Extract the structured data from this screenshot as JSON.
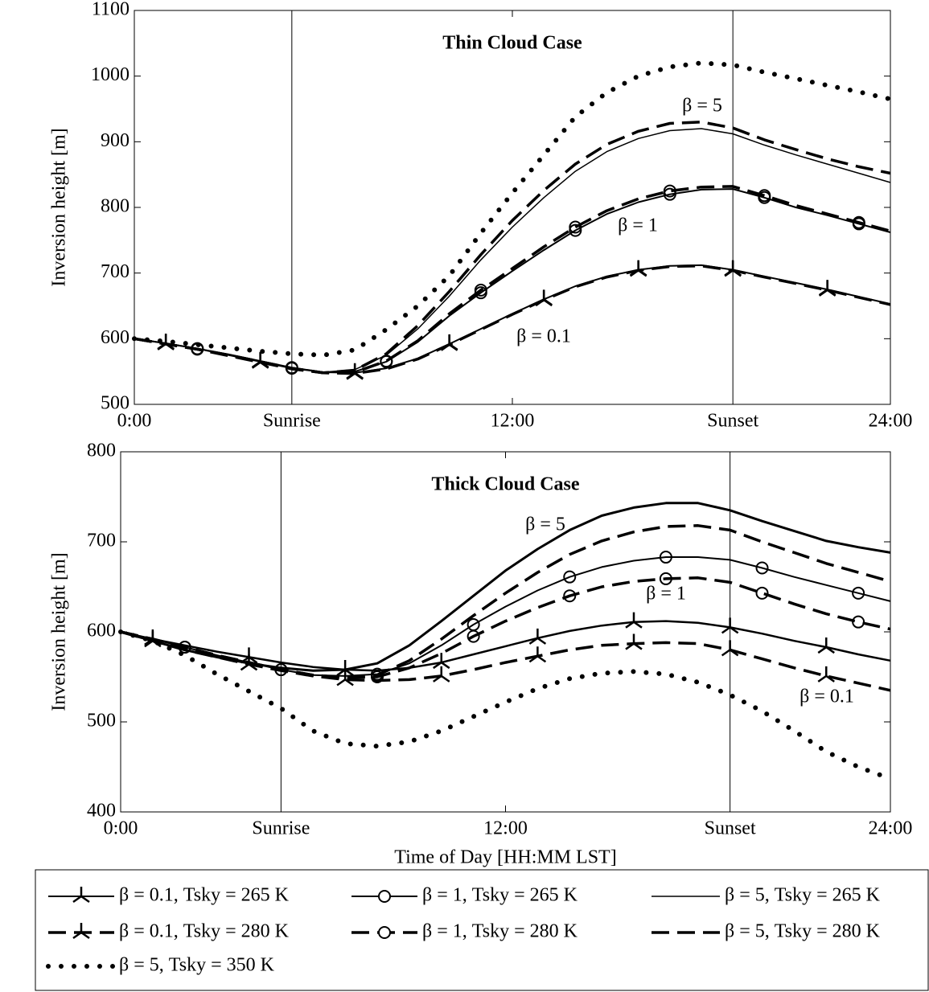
{
  "chart_data": [
    {
      "type": "line",
      "title": "Thin Cloud Case",
      "ylabel": "Inversion height [m]",
      "x": [
        0,
        1,
        2,
        3,
        4,
        5,
        6,
        7,
        8,
        9,
        10,
        11,
        12,
        13,
        14,
        15,
        16,
        17,
        18,
        19,
        20,
        21,
        22,
        23,
        24
      ],
      "xlim": [
        0,
        24
      ],
      "xticks": [
        {
          "value": 0,
          "label": "0:00"
        },
        {
          "value": 12,
          "label": "12:00"
        },
        {
          "value": 24,
          "label": "24:00"
        }
      ],
      "events": [
        {
          "value": 5,
          "label": "Sunrise"
        },
        {
          "value": 19,
          "label": "Sunset"
        }
      ],
      "ylim": [
        500,
        1100
      ],
      "yticks": [
        500,
        600,
        700,
        800,
        900,
        1000,
        1100
      ],
      "annotations": [
        "β = 5",
        "β = 1",
        "β = 0.1"
      ],
      "series": [
        {
          "name": "β = 0.1, Tsky = 265 K",
          "color": "#000000",
          "style": "solid",
          "linewidth": 2,
          "marker": "tri",
          "values": [
            600,
            593,
            585,
            575,
            565,
            555,
            549,
            548,
            555,
            570,
            592,
            615,
            638,
            660,
            680,
            695,
            705,
            711,
            712,
            705,
            695,
            685,
            675,
            664,
            653
          ]
        },
        {
          "name": "β = 1, Tsky = 265 K",
          "color": "#000000",
          "style": "solid",
          "linewidth": 2,
          "marker": "circle",
          "values": [
            600,
            593,
            585,
            576,
            566,
            556,
            549,
            550,
            565,
            595,
            635,
            670,
            703,
            735,
            765,
            790,
            808,
            820,
            827,
            828,
            815,
            800,
            788,
            775,
            762
          ]
        },
        {
          "name": "β = 5, Tsky = 265 K",
          "color": "#000000",
          "style": "solid",
          "linewidth": 1.5,
          "marker": "none",
          "values": [
            600,
            593,
            585,
            576,
            566,
            556,
            549,
            553,
            575,
            615,
            665,
            720,
            770,
            815,
            855,
            885,
            905,
            917,
            920,
            912,
            895,
            880,
            866,
            852,
            838
          ]
        },
        {
          "name": "β = 0.1, Tsky = 280 K",
          "color": "#000000",
          "style": "dashed",
          "linewidth": 3.5,
          "marker": "tri",
          "values": [
            600,
            592,
            584,
            574,
            564,
            554,
            548,
            547,
            554,
            569,
            591,
            614,
            637,
            659,
            679,
            694,
            704,
            710,
            711,
            704,
            694,
            684,
            674,
            663,
            652
          ]
        },
        {
          "name": "β = 1, Tsky = 280 K",
          "color": "#000000",
          "style": "dashed",
          "linewidth": 3.5,
          "marker": "circle",
          "values": [
            600,
            592,
            584,
            575,
            565,
            555,
            548,
            549,
            566,
            597,
            638,
            674,
            707,
            740,
            770,
            795,
            813,
            825,
            831,
            832,
            818,
            803,
            790,
            777,
            764
          ]
        },
        {
          "name": "β = 5, Tsky = 280 K",
          "color": "#000000",
          "style": "dashed",
          "linewidth": 3.5,
          "marker": "none",
          "values": [
            600,
            592,
            584,
            575,
            565,
            555,
            548,
            552,
            577,
            620,
            672,
            728,
            780,
            826,
            866,
            896,
            916,
            928,
            930,
            921,
            903,
            888,
            874,
            862,
            852
          ]
        },
        {
          "name": "β = 5, Tsky = 350 K",
          "color": "#000000",
          "style": "dotted",
          "linewidth": 6,
          "marker": "none",
          "values": [
            600,
            596,
            591,
            586,
            581,
            577,
            575,
            583,
            614,
            650,
            696,
            761,
            822,
            880,
            938,
            975,
            1000,
            1014,
            1020,
            1017,
            1006,
            996,
            986,
            976,
            965
          ]
        }
      ]
    },
    {
      "type": "line",
      "title": "Thick Cloud Case",
      "ylabel": "Inversion height [m]",
      "xlabel": "Time of Day [HH:MM LST]",
      "x": [
        0,
        1,
        2,
        3,
        4,
        5,
        6,
        7,
        8,
        9,
        10,
        11,
        12,
        13,
        14,
        15,
        16,
        17,
        18,
        19,
        20,
        21,
        22,
        23,
        24
      ],
      "xlim": [
        0,
        24
      ],
      "xticks": [
        {
          "value": 0,
          "label": "0:00"
        },
        {
          "value": 12,
          "label": "12:00"
        },
        {
          "value": 24,
          "label": "24:00"
        }
      ],
      "events": [
        {
          "value": 5,
          "label": "Sunrise"
        },
        {
          "value": 19,
          "label": "Sunset"
        }
      ],
      "ylim": [
        400,
        800
      ],
      "yticks": [
        400,
        500,
        600,
        700,
        800
      ],
      "annotations": [
        "β = 5",
        "β = 1",
        "β = 0.1"
      ],
      "series": [
        {
          "color": "#000000",
          "style": "solid",
          "linewidth": 2.5,
          "marker": "tri",
          "values": [
            600,
            592,
            585,
            578,
            572,
            566,
            561,
            558,
            557,
            560,
            566,
            575,
            584,
            593,
            601,
            607,
            611,
            612,
            610,
            605,
            598,
            590,
            583,
            575,
            568
          ]
        },
        {
          "color": "#000000",
          "style": "solid",
          "linewidth": 2,
          "marker": "circle",
          "values": [
            600,
            592,
            583,
            574,
            566,
            558,
            552,
            551,
            553,
            565,
            585,
            608,
            628,
            646,
            661,
            672,
            679,
            683,
            683,
            680,
            671,
            661,
            652,
            643,
            634
          ]
        },
        {
          "color": "#000000",
          "style": "solid",
          "linewidth": 3,
          "marker": "none",
          "values": [
            600,
            590,
            580,
            572,
            565,
            560,
            557,
            558,
            565,
            585,
            612,
            640,
            668,
            692,
            713,
            729,
            738,
            743,
            743,
            735,
            723,
            712,
            701,
            694,
            688
          ]
        },
        {
          "color": "#000000",
          "style": "dashed",
          "linewidth": 3.5,
          "marker": "tri",
          "values": [
            600,
            590,
            580,
            572,
            564,
            557,
            551,
            547,
            546,
            547,
            551,
            558,
            566,
            573,
            580,
            585,
            587,
            588,
            587,
            580,
            570,
            560,
            551,
            543,
            535
          ]
        },
        {
          "color": "#000000",
          "style": "dashed",
          "linewidth": 3.5,
          "marker": "circle",
          "values": [
            600,
            592,
            583,
            574,
            566,
            558,
            552,
            549,
            550,
            560,
            576,
            595,
            612,
            627,
            640,
            650,
            656,
            659,
            660,
            655,
            643,
            631,
            620,
            611,
            603
          ]
        },
        {
          "color": "#000000",
          "style": "dashed",
          "linewidth": 3.5,
          "marker": "none",
          "values": [
            600,
            592,
            583,
            574,
            566,
            558,
            552,
            549,
            552,
            568,
            592,
            618,
            643,
            666,
            686,
            701,
            711,
            717,
            718,
            713,
            700,
            688,
            676,
            666,
            656
          ]
        },
        {
          "color": "#000000",
          "style": "dotted",
          "linewidth": 6,
          "marker": "none",
          "values": [
            600,
            590,
            574,
            553,
            534,
            515,
            490,
            476,
            473,
            478,
            490,
            506,
            522,
            537,
            548,
            554,
            556,
            553,
            544,
            530,
            512,
            490,
            467,
            450,
            437
          ]
        }
      ]
    }
  ]
}
